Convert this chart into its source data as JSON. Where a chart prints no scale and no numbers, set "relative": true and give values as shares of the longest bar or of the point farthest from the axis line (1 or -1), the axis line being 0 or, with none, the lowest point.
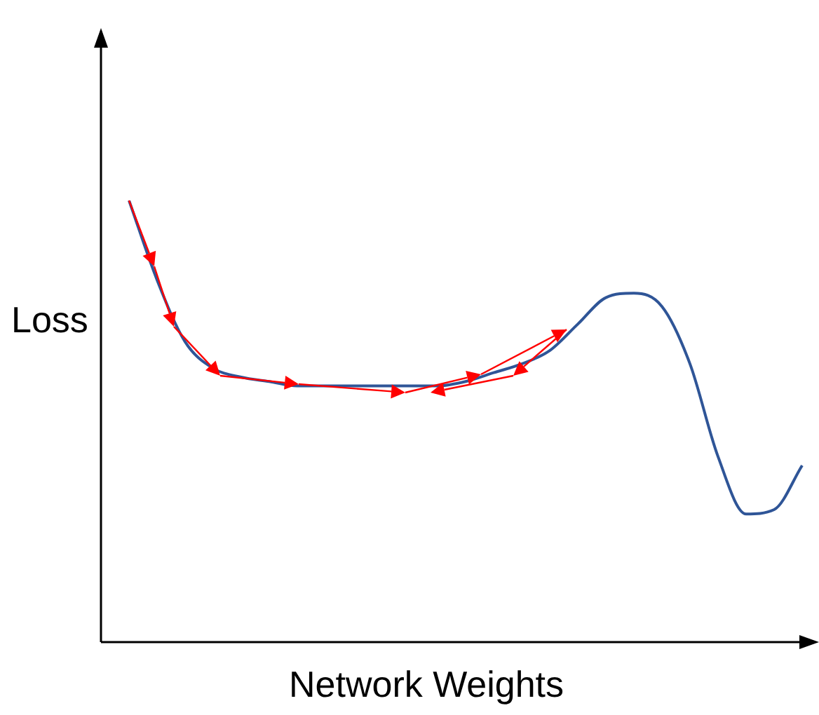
{
  "chart_data": {
    "type": "line",
    "relative": true,
    "xlabel": "Network Weights",
    "ylabel": "Loss",
    "categories": [
      null,
      null,
      null,
      null,
      null,
      null,
      null,
      null,
      null,
      null,
      null,
      null,
      null,
      null,
      null,
      null,
      null,
      null,
      null,
      null,
      null,
      null,
      null,
      null,
      null
    ],
    "series": [
      {
        "color": "#2f5597",
        "values": [
          1.0,
          0.82,
          0.68,
          0.62,
          0.6,
          0.59,
          0.58,
          0.58,
          0.58,
          0.58,
          0.58,
          0.58,
          0.59,
          0.61,
          0.63,
          0.66,
          0.72,
          0.78,
          0.79,
          0.76,
          0.63,
          0.42,
          0.29,
          0.3,
          0.4
        ]
      }
    ],
    "marker": "none",
    "grid": false,
    "legend": false
  }
}
